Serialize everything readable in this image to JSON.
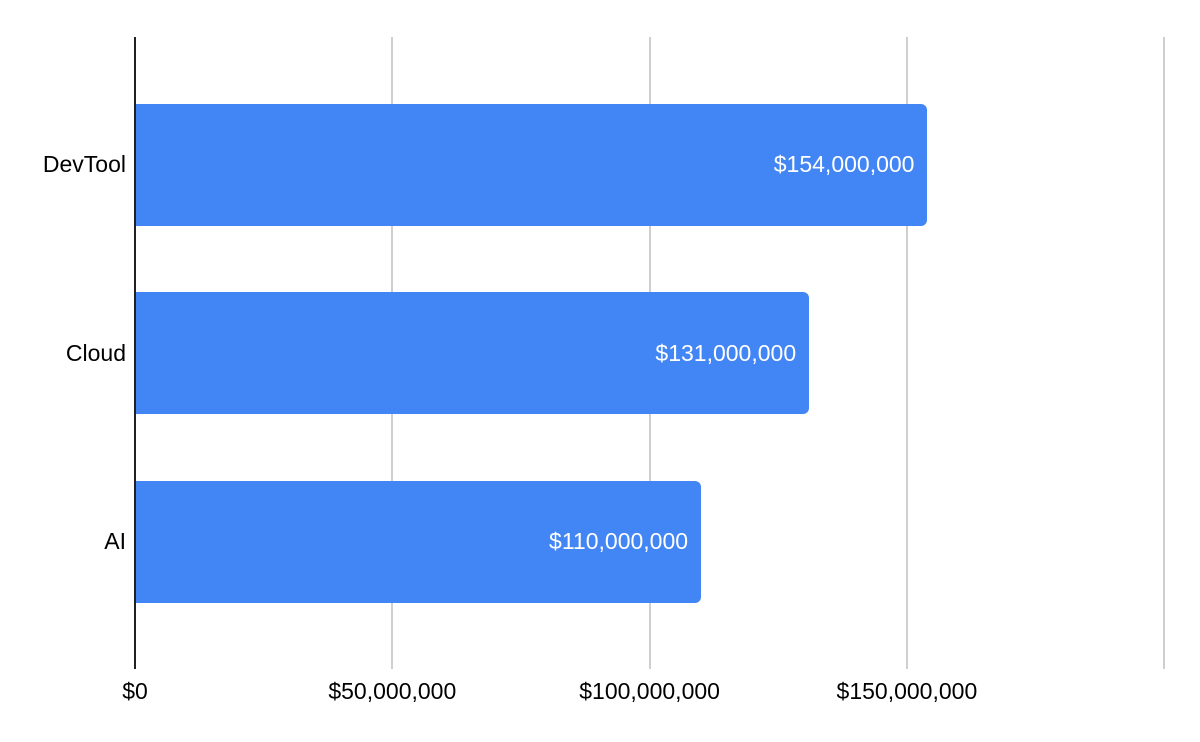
{
  "chart_data": {
    "type": "bar",
    "orientation": "horizontal",
    "title": "",
    "categories": [
      "DevTool",
      "Cloud",
      "AI"
    ],
    "values": [
      154000000,
      131000000,
      110000000
    ],
    "value_labels": [
      "$154,000,000",
      "$131,000,000",
      "$110,000,000"
    ],
    "x_ticks": [
      {
        "value": 0,
        "label": "$0"
      },
      {
        "value": 50000000,
        "label": "$50,000,000"
      },
      {
        "value": 100000000,
        "label": "$100,000,000"
      },
      {
        "value": 150000000,
        "label": "$150,000,000"
      },
      {
        "value": 200000000,
        "label": ""
      }
    ],
    "xlim": [
      0,
      200000000
    ],
    "grid": true,
    "legend": false,
    "colors": {
      "bar": "#4285f4",
      "axis": "#212121",
      "gridline": "#cfcfcf",
      "category_label": "#000000",
      "tick_label": "#000000",
      "value_label": "#ffffff",
      "background": "#ffffff"
    }
  }
}
